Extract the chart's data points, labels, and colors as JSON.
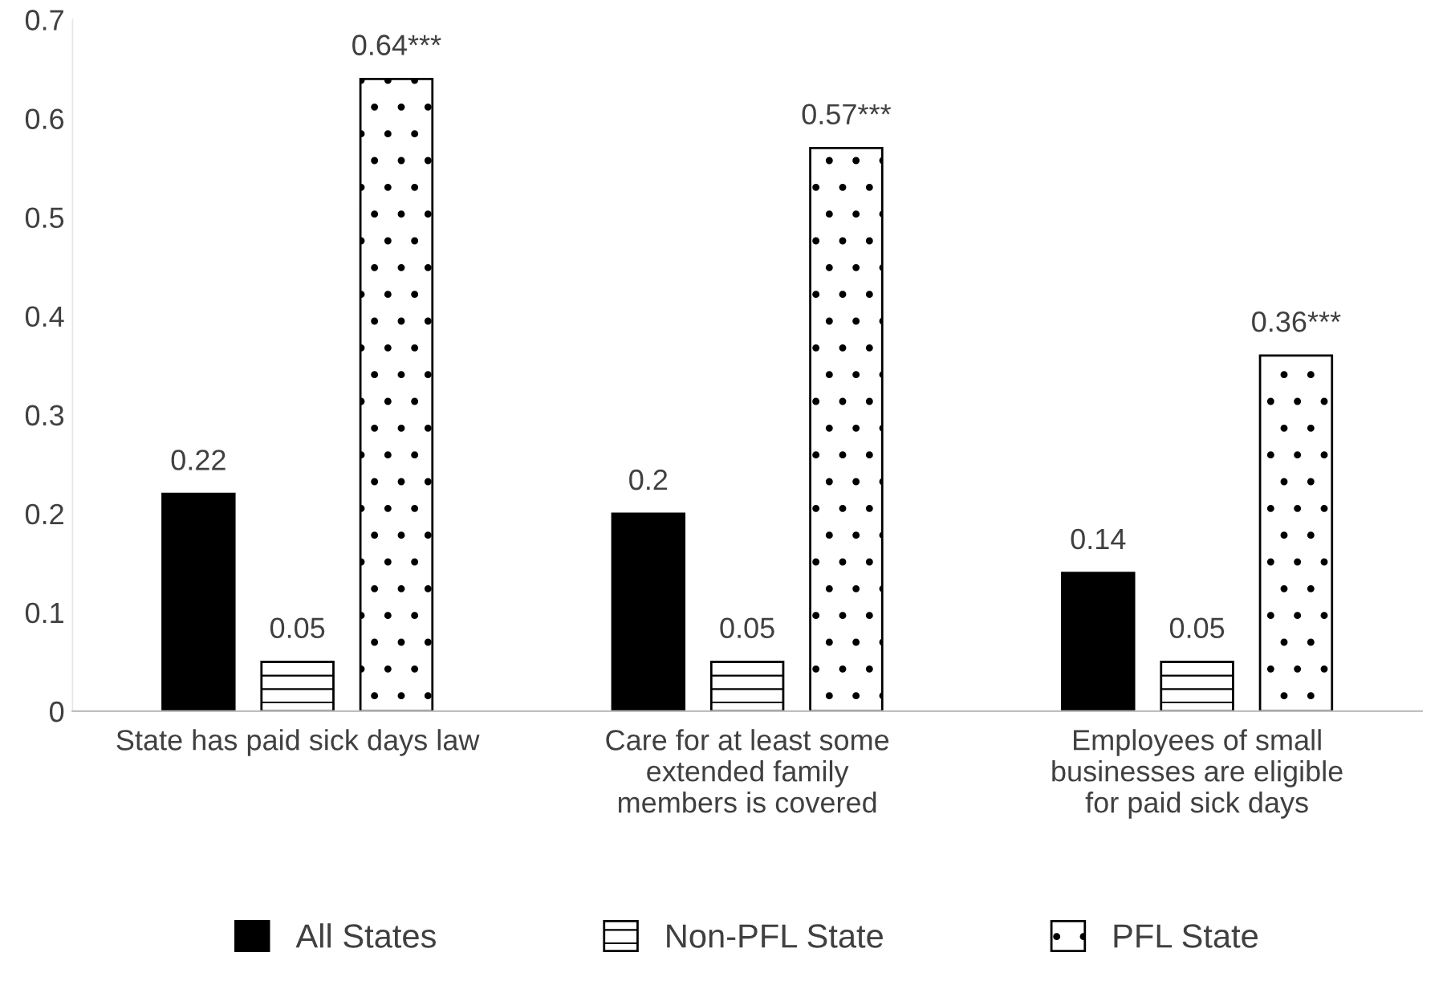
{
  "chart_data": {
    "type": "bar",
    "categories": [
      "State has paid sick days law",
      "Care for at least some\nextended family\nmembers is covered",
      "Employees of small\nbusinesses are eligible\nfor paid sick days"
    ],
    "series": [
      {
        "name": "All States",
        "color": "#000000",
        "values": [
          0.22,
          0.2,
          0.14
        ],
        "value_labels": [
          "0.22",
          "0.2",
          "0.14"
        ]
      },
      {
        "name": "Non-PFL State",
        "color": "#000000",
        "values": [
          0.05,
          0.05,
          0.05
        ],
        "value_labels": [
          "0.05",
          "0.05",
          "0.05"
        ]
      },
      {
        "name": "PFL State",
        "color": "#000000",
        "values": [
          0.64,
          0.57,
          0.36
        ],
        "value_labels": [
          "0.64***",
          "0.57***",
          "0.36***"
        ]
      }
    ],
    "ylim": [
      0,
      0.7
    ],
    "yticks": [
      0,
      0.1,
      0.2,
      0.3,
      0.4,
      0.5,
      0.6,
      0.7
    ],
    "grid": false,
    "legend": "bottom"
  }
}
